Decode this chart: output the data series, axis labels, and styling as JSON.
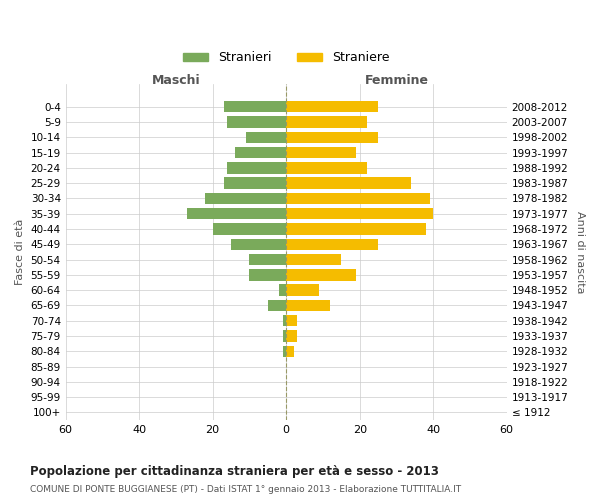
{
  "age_groups": [
    "100+",
    "95-99",
    "90-94",
    "85-89",
    "80-84",
    "75-79",
    "70-74",
    "65-69",
    "60-64",
    "55-59",
    "50-54",
    "45-49",
    "40-44",
    "35-39",
    "30-34",
    "25-29",
    "20-24",
    "15-19",
    "10-14",
    "5-9",
    "0-4"
  ],
  "birth_years": [
    "≤ 1912",
    "1913-1917",
    "1918-1922",
    "1923-1927",
    "1928-1932",
    "1933-1937",
    "1938-1942",
    "1943-1947",
    "1948-1952",
    "1953-1957",
    "1958-1962",
    "1963-1967",
    "1968-1972",
    "1973-1977",
    "1978-1982",
    "1983-1987",
    "1988-1992",
    "1993-1997",
    "1998-2002",
    "2003-2007",
    "2008-2012"
  ],
  "maschi": [
    0,
    0,
    0,
    0,
    1,
    1,
    1,
    5,
    2,
    10,
    10,
    15,
    20,
    27,
    22,
    17,
    16,
    14,
    11,
    16,
    17
  ],
  "femmine": [
    0,
    0,
    0,
    0,
    2,
    3,
    3,
    12,
    9,
    19,
    15,
    25,
    38,
    40,
    39,
    34,
    22,
    19,
    25,
    22,
    25
  ],
  "color_maschi": "#7aaa5b",
  "color_femmine": "#f5bc00",
  "title": "Popolazione per cittadinanza straniera per età e sesso - 2013",
  "subtitle": "COMUNE DI PONTE BUGGIANESE (PT) - Dati ISTAT 1° gennaio 2013 - Elaborazione TUTTITALIA.IT",
  "xlabel_left": "Maschi",
  "xlabel_right": "Femmine",
  "ylabel_left": "Fasce di età",
  "ylabel_right": "Anni di nascita",
  "legend_maschi": "Stranieri",
  "legend_femmine": "Straniere",
  "xlim": 60,
  "bg_color": "#ffffff",
  "grid_color": "#cccccc"
}
